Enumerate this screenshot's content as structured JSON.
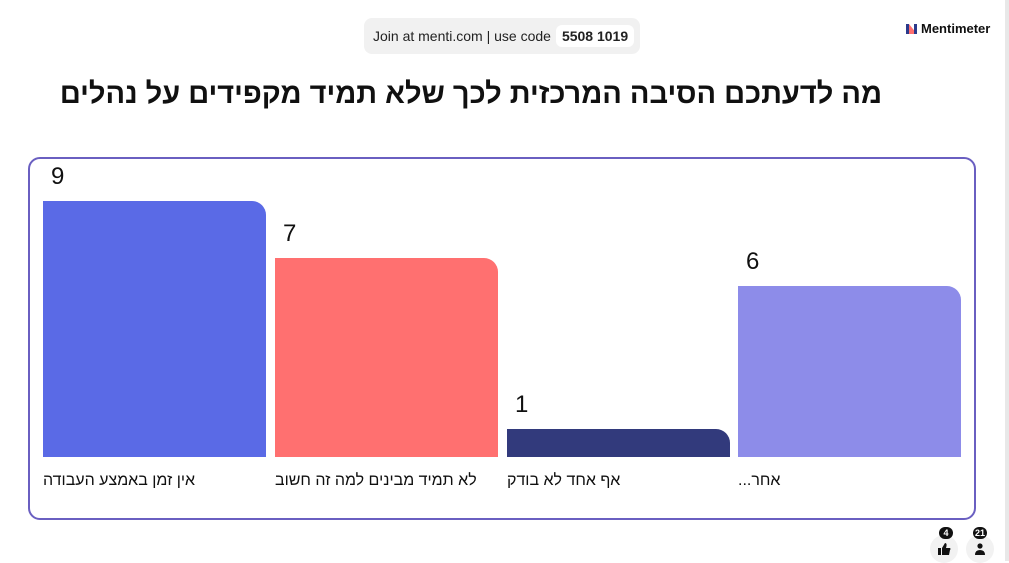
{
  "header": {
    "join_text": "Join at menti.com | use code",
    "code": "5508 1019",
    "logo": "Mentimeter"
  },
  "title": "מה לדעתכם הסיבה המרכזית לכך שלא תמיד מקפידים על נהלים",
  "chart_data": {
    "type": "bar",
    "categories": [
      "אין זמן באמצע העבודה",
      "לא תמיד מבינים למה זה חשוב",
      "אף אחד לא בודק",
      "אחר..."
    ],
    "values": [
      9,
      7,
      1,
      6
    ],
    "colors": [
      "#5a6ae6",
      "#ff7070",
      "#323a7c",
      "#8d8ce9"
    ],
    "ylim": [
      0,
      9
    ]
  },
  "footer": {
    "likes": "4",
    "participants": "21"
  }
}
